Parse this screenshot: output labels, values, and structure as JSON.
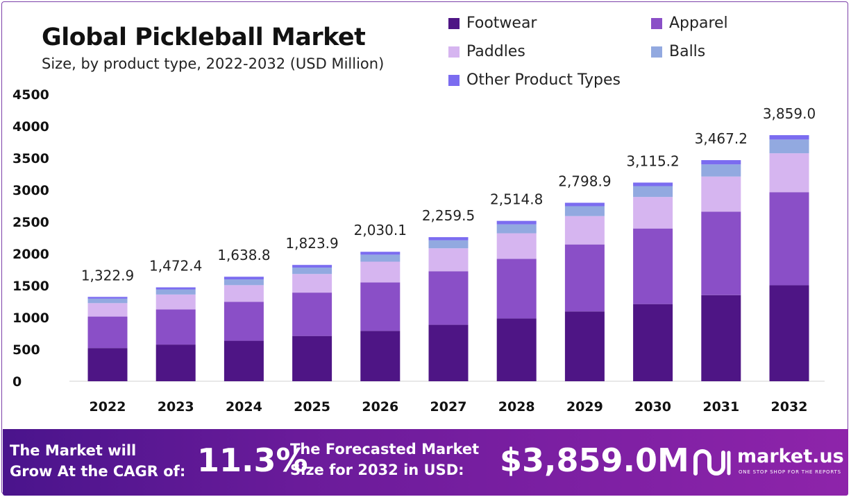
{
  "chart_data": {
    "type": "bar",
    "stacked": true,
    "title": "Global Pickleball Market",
    "subtitle": "Size, by product type, 2022-2032 (USD Million)",
    "categories": [
      "2022",
      "2023",
      "2024",
      "2025",
      "2026",
      "2027",
      "2028",
      "2029",
      "2030",
      "2031",
      "2032"
    ],
    "series": [
      {
        "name": "Footwear",
        "color": "#4e1585",
        "values": [
          520,
          575,
          635,
          710,
          790,
          885,
          985,
          1095,
          1210,
          1350,
          1505
        ]
      },
      {
        "name": "Apparel",
        "color": "#8a4fc7",
        "values": [
          495,
          550,
          610,
          680,
          760,
          840,
          935,
          1050,
          1185,
          1310,
          1460
        ]
      },
      {
        "name": "Paddles",
        "color": "#d6b5f0",
        "values": [
          210,
          235,
          262,
          292,
          325,
          360,
          400,
          445,
          495,
          550,
          610
        ]
      },
      {
        "name": "Balls",
        "color": "#92a9e0",
        "values": [
          70,
          80,
          90,
          100,
          110,
          125,
          140,
          155,
          170,
          190,
          215
        ]
      },
      {
        "name": "Other Product Types",
        "color": "#7b6cf0",
        "values": [
          27.9,
          32.4,
          41.8,
          41.9,
          45.1,
          49.5,
          54.8,
          53.9,
          55.2,
          67.2,
          69.0
        ]
      }
    ],
    "totals": [
      "1,322.9",
      "1,472.4",
      "1,638.8",
      "1,823.9",
      "2,030.1",
      "2,259.5",
      "2,514.8",
      "2,798.9",
      "3,115.2",
      "3,467.2",
      "3,859.0"
    ],
    "y_ticks": [
      "0",
      "500",
      "1000",
      "1500",
      "2000",
      "2500",
      "3000",
      "3500",
      "4000",
      "4500"
    ],
    "ylim": [
      0,
      4500
    ],
    "legend_position": "top-right"
  },
  "banner": {
    "cagr_text_line1": "The Market will",
    "cagr_text_line2": "Grow At the CAGR of:",
    "cagr_value": "11.3%",
    "forecast_text_line1": "The Forecasted Market",
    "forecast_text_line2": "Size for 2032 in USD:",
    "forecast_value": "$3,859.0M",
    "brand": "market.us",
    "tagline": "ONE STOP SHOP FOR THE REPORTS",
    "brand_icon": "market-us-logo-icon"
  }
}
